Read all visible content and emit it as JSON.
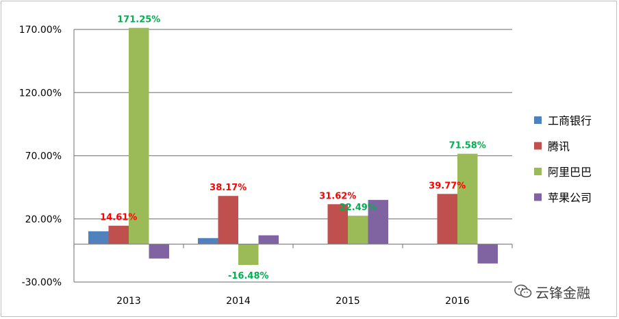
{
  "chart_data": {
    "type": "bar",
    "categories": [
      "2013",
      "2014",
      "2015",
      "2016"
    ],
    "series": [
      {
        "name": "工商银行",
        "color": "#4f81bd",
        "values": [
          10.2,
          4.8,
          0.0,
          0.0
        ]
      },
      {
        "name": "腾讯",
        "color": "#c0504d",
        "values": [
          14.61,
          38.17,
          31.62,
          39.77
        ]
      },
      {
        "name": "阿里巴巴",
        "color": "#9bbb59",
        "values": [
          171.25,
          -16.48,
          22.49,
          71.58
        ]
      },
      {
        "name": "苹果公司",
        "color": "#8064a2",
        "values": [
          -11.4,
          7.0,
          35.0,
          -15.3
        ]
      }
    ],
    "data_labels": [
      {
        "category": "2013",
        "series": "腾讯",
        "text": "14.61%",
        "color": "#ff0000"
      },
      {
        "category": "2013",
        "series": "阿里巴巴",
        "text": "171.25%",
        "color": "#00b050"
      },
      {
        "category": "2014",
        "series": "腾讯",
        "text": "38.17%",
        "color": "#ff0000"
      },
      {
        "category": "2014",
        "series": "阿里巴巴",
        "text": "-16.48%",
        "color": "#00b050"
      },
      {
        "category": "2015",
        "series": "腾讯",
        "text": "31.62%",
        "color": "#ff0000"
      },
      {
        "category": "2015",
        "series": "阿里巴巴",
        "text": "22.49%",
        "color": "#00b050"
      },
      {
        "category": "2016",
        "series": "腾讯",
        "text": "39.77%",
        "color": "#ff0000"
      },
      {
        "category": "2016",
        "series": "阿里巴巴",
        "text": "71.58%",
        "color": "#00b050"
      }
    ],
    "y_ticks": [
      {
        "value": 170,
        "label": "170.00%"
      },
      {
        "value": 120,
        "label": "120.00%"
      },
      {
        "value": 70,
        "label": "70.00%"
      },
      {
        "value": 20,
        "label": "20.00%"
      },
      {
        "value": -30,
        "label": "-30.00%"
      }
    ],
    "ylim": [
      -30,
      170
    ],
    "grid": true,
    "legend_position": "right",
    "title": "",
    "xlabel": "",
    "ylabel": ""
  },
  "watermark": {
    "text": "云锋金融",
    "icon": "wechat-icon"
  }
}
